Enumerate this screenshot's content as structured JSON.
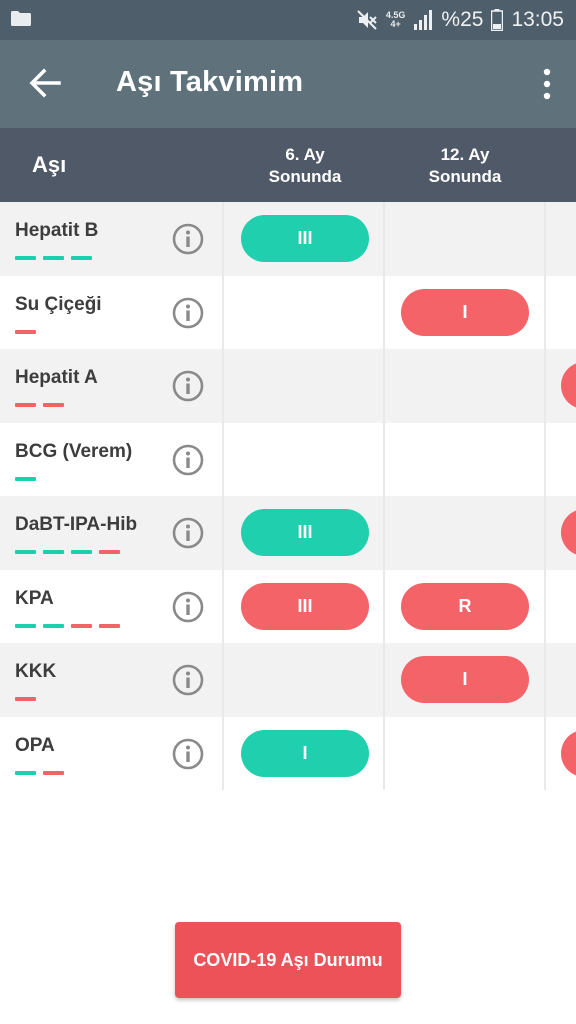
{
  "status_bar": {
    "network": "4.5G",
    "network_sub": "4+",
    "battery": "%25",
    "time": "13:05"
  },
  "app_bar": {
    "title": "Aşı Takvimim"
  },
  "table": {
    "header_vaccine": "Aşı",
    "columns": [
      {
        "line1": "6. Ay",
        "line2": "Sonunda"
      },
      {
        "line1": "12. Ay",
        "line2": "Sonunda"
      }
    ],
    "rows": [
      {
        "name": "Hepatit B",
        "dashes": [
          "green",
          "green",
          "green"
        ],
        "doses": [
          "III",
          "",
          ""
        ]
      },
      {
        "name": "Su Çiçeği",
        "dashes": [
          "red"
        ],
        "doses": [
          "",
          "I",
          ""
        ]
      },
      {
        "name": "Hepatit A",
        "dashes": [
          "red",
          "red"
        ],
        "doses": [
          "",
          "",
          "red"
        ]
      },
      {
        "name": "BCG (Verem)",
        "dashes": [
          "green"
        ],
        "doses": [
          "",
          "",
          ""
        ]
      },
      {
        "name": "DaBT-IPA-Hib",
        "dashes": [
          "green",
          "green",
          "green",
          "red"
        ],
        "doses": [
          "III",
          "",
          "red"
        ]
      },
      {
        "name": "KPA",
        "dashes": [
          "green",
          "green",
          "red",
          "red"
        ],
        "doses": [
          "III",
          "R",
          ""
        ]
      },
      {
        "name": "KKK",
        "dashes": [
          "red"
        ],
        "doses": [
          "",
          "I",
          ""
        ]
      },
      {
        "name": "OPA",
        "dashes": [
          "green",
          "red"
        ],
        "doses": [
          "I",
          "",
          "red"
        ]
      }
    ],
    "pill_colors": {
      "Hepatit B": [
        "green",
        "",
        ""
      ],
      "Su Çiçeği": [
        "",
        "red",
        ""
      ],
      "DaBT-IPA-Hib": [
        "green",
        "",
        ""
      ],
      "KPA": [
        "red",
        "red",
        ""
      ],
      "KKK": [
        "",
        "red",
        ""
      ],
      "OPA": [
        "green",
        "",
        ""
      ]
    }
  },
  "covid_button": {
    "label": "COVID-19 Aşı Durumu"
  },
  "colors": {
    "status_bar": "#4e5e6a",
    "app_bar": "#5f727c",
    "table_header": "#505968",
    "green": "#1fcfad",
    "red": "#f36367"
  }
}
